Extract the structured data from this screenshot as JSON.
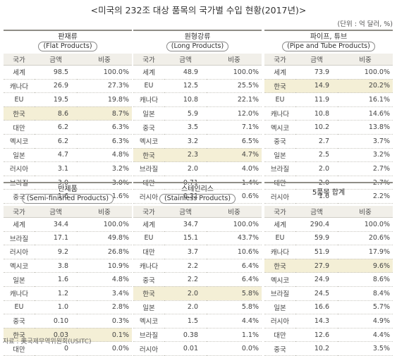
{
  "title": "<미국의 232조 대상 품목의 국가별 수입 현황(2017년)>",
  "unit": "(단위 : 억 달러, %)",
  "columns": [
    "국가",
    "금액",
    "비중"
  ],
  "tables": [
    {
      "ko": "판재류",
      "en": "(Flat Products)",
      "rows": [
        [
          "세계",
          "98.5",
          "100.0%"
        ],
        [
          "캐나다",
          "26.9",
          "27.3%"
        ],
        [
          "EU",
          "19.5",
          "19.8%"
        ],
        [
          "한국",
          "8.6",
          "8.7%"
        ],
        [
          "대만",
          "6.2",
          "6.3%"
        ],
        [
          "멕시코",
          "6.2",
          "6.3%"
        ],
        [
          "일본",
          "4.7",
          "4.8%"
        ],
        [
          "러시아",
          "3.1",
          "3.2%"
        ],
        [
          "브라질",
          "3.0",
          "3.0%"
        ],
        [
          "중국",
          "1.6",
          "1.6%"
        ]
      ]
    },
    {
      "ko": "원형강류",
      "en": "(Long Products)",
      "rows": [
        [
          "세계",
          "48.9",
          "100.0%"
        ],
        [
          "EU",
          "12.5",
          "25.5%"
        ],
        [
          "캐나다",
          "10.8",
          "22.1%"
        ],
        [
          "일본",
          "5.9",
          "12.0%"
        ],
        [
          "중국",
          "3.5",
          "7.1%"
        ],
        [
          "멕시코",
          "3.2",
          "6.5%"
        ],
        [
          "한국",
          "2.3",
          "4.7%"
        ],
        [
          "브라질",
          "2.0",
          "4.0%"
        ],
        [
          "대만",
          "0.71",
          "1.4%"
        ],
        [
          "러시아",
          "0.31",
          "0.6%"
        ]
      ]
    },
    {
      "ko": "파이프, 튜브",
      "en": "(Pipe and Tube Products)",
      "rows": [
        [
          "세계",
          "73.9",
          "100.0%"
        ],
        [
          "한국",
          "14.9",
          "20.2%"
        ],
        [
          "EU",
          "11.9",
          "16.1%"
        ],
        [
          "캐나다",
          "10.8",
          "14.6%"
        ],
        [
          "멕시코",
          "10.2",
          "13.8%"
        ],
        [
          "중국",
          "2.7",
          "3.7%"
        ],
        [
          "일본",
          "2.5",
          "3.2%"
        ],
        [
          "브라질",
          "2.0",
          "2.7%"
        ],
        [
          "대만",
          "2.0",
          "2.7%"
        ],
        [
          "러시아",
          "1.6",
          "2.2%"
        ]
      ]
    },
    {
      "ko": "반제품",
      "en": "(Semi-finished Products)",
      "rows": [
        [
          "세계",
          "34.4",
          "100.0%"
        ],
        [
          "브라질",
          "17.1",
          "49.8%"
        ],
        [
          "러시아",
          "9.2",
          "26.8%"
        ],
        [
          "멕시코",
          "3.8",
          "10.9%"
        ],
        [
          "일본",
          "1.6",
          "4.8%"
        ],
        [
          "캐나다",
          "1.2",
          "3.4%"
        ],
        [
          "EU",
          "1.0",
          "2.8%"
        ],
        [
          "중국",
          "0.10",
          "0.3%"
        ],
        [
          "한국",
          "0.03",
          "0.1%"
        ],
        [
          "대만",
          "0",
          "0.0%"
        ]
      ]
    },
    {
      "ko": "스테인리스",
      "en": "(Stainless Products)",
      "rows": [
        [
          "세계",
          "34.7",
          "100.0%"
        ],
        [
          "EU",
          "15.1",
          "43.7%"
        ],
        [
          "대만",
          "3.7",
          "10.6%"
        ],
        [
          "캐나다",
          "2.2",
          "6.4%"
        ],
        [
          "중국",
          "2.2",
          "6.4%"
        ],
        [
          "한국",
          "2.0",
          "5.8%"
        ],
        [
          "일본",
          "2.0",
          "5.8%"
        ],
        [
          "멕시코",
          "1.5",
          "4.4%"
        ],
        [
          "브라질",
          "0.38",
          "1.1%"
        ],
        [
          "러시아",
          "0.01",
          "0.0%"
        ]
      ]
    },
    {
      "ko": "5품목 합계",
      "en": "",
      "rows": [
        [
          "세계",
          "290.4",
          "100.0%"
        ],
        [
          "EU",
          "59.9",
          "20.6%"
        ],
        [
          "캐나다",
          "51.9",
          "17.9%"
        ],
        [
          "한국",
          "27.9",
          "9.6%"
        ],
        [
          "멕시코",
          "24.9",
          "8.6%"
        ],
        [
          "브라질",
          "24.5",
          "8.4%"
        ],
        [
          "일본",
          "16.6",
          "5.7%"
        ],
        [
          "러시아",
          "14.3",
          "4.9%"
        ],
        [
          "대만",
          "12.6",
          "4.4%"
        ],
        [
          "중국",
          "10.2",
          "3.5%"
        ]
      ]
    }
  ],
  "footnote": "자료 : 美국제무역위원회(USITC)"
}
